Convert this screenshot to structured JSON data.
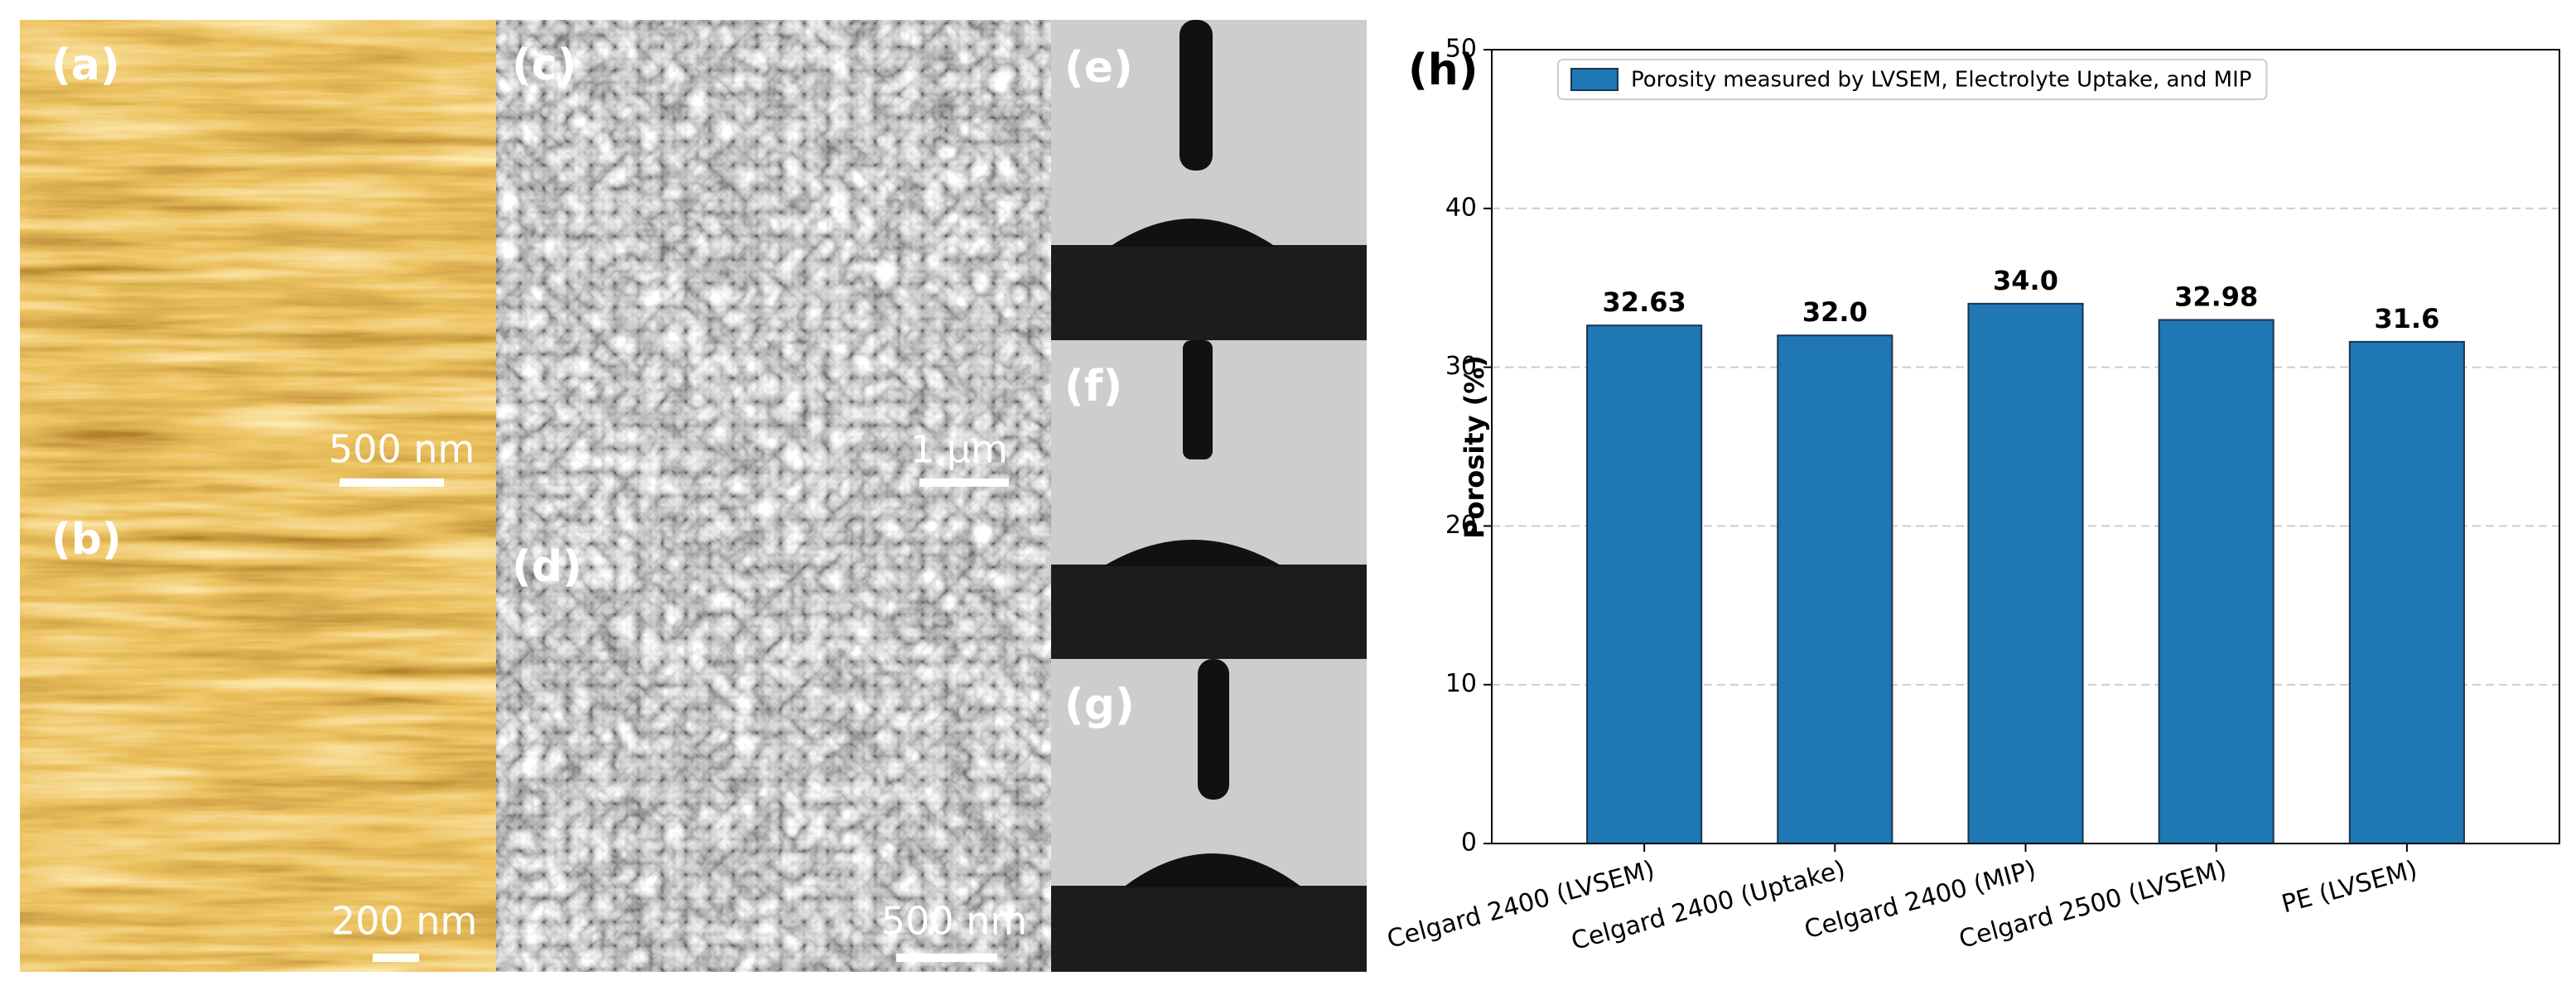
{
  "image_panels": [
    {
      "label": "(a)",
      "scale_bar": "500 nm"
    },
    {
      "label": "(b)",
      "scale_bar": "200 nm"
    },
    {
      "label": "(c)",
      "scale_bar": "1 µm"
    },
    {
      "label": "(d)",
      "scale_bar": "500 nm"
    },
    {
      "label": "(e)"
    },
    {
      "label": "(f)"
    },
    {
      "label": "(g)"
    }
  ],
  "chart_data": {
    "type": "bar",
    "title": "(h)",
    "ylabel": "Porosity (%)",
    "categories": [
      "Celgard 2400 (LVSEM)",
      "Celgard 2400 (Uptake)",
      "Celgard 2400 (MIP)",
      "Celgard 2500 (LVSEM)",
      "PE (LVSEM)"
    ],
    "series": [
      {
        "name": "Porosity measured by LVSEM, Electrolyte Uptake, and MIP",
        "color": "#1f77b4",
        "values": [
          32.63,
          32,
          34,
          32.98,
          31.6
        ],
        "value_labels": [
          "32.63",
          "32.0",
          "34.0",
          "32.98",
          "31.6"
        ]
      }
    ],
    "ylim": [
      0,
      50
    ],
    "yticks": [
      0,
      10,
      20,
      30,
      40,
      50
    ],
    "grid": true,
    "legend": "upper left"
  }
}
